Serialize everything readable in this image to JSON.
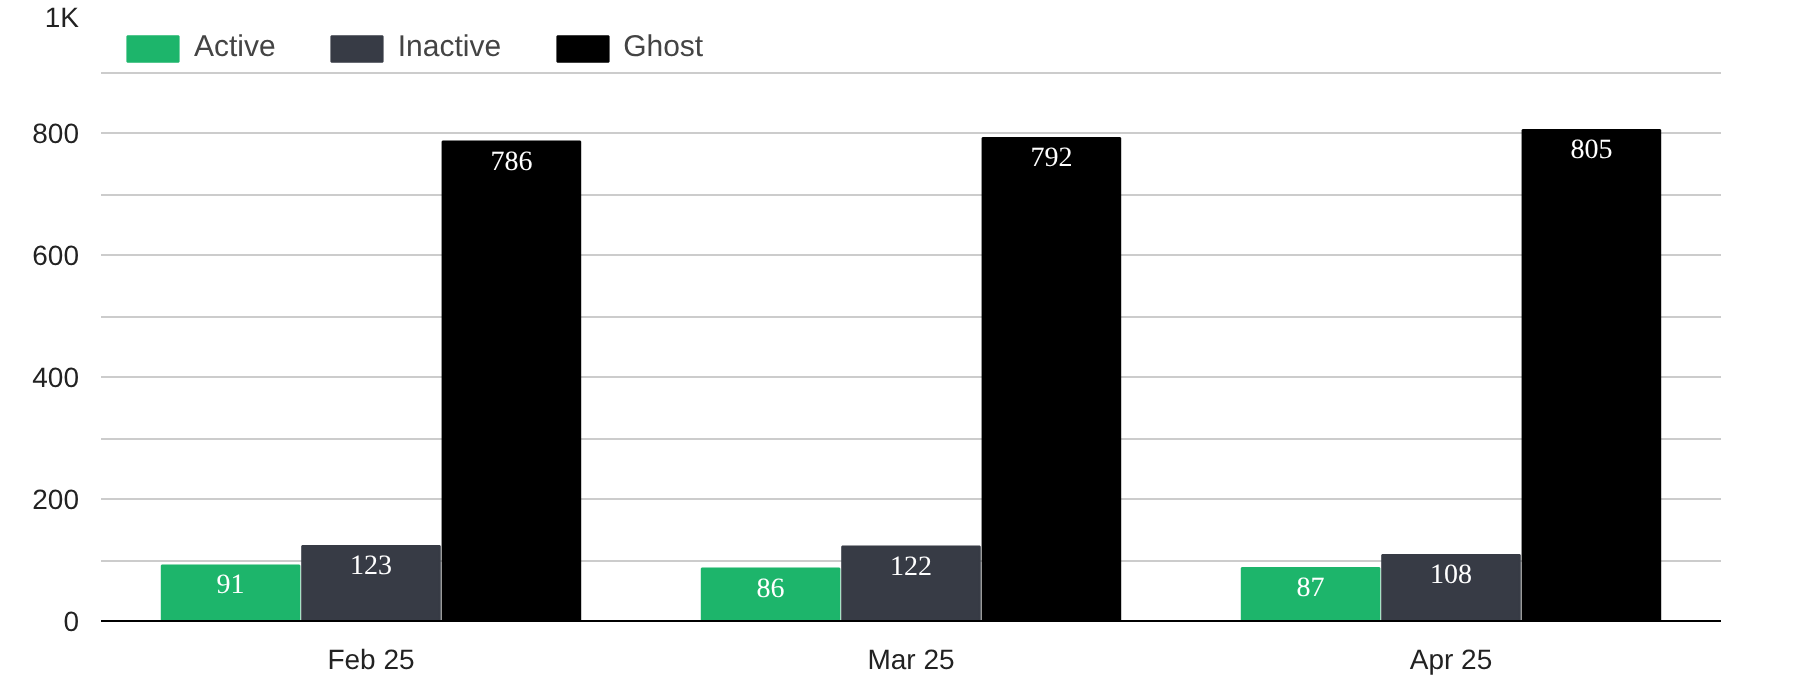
{
  "chart_data": {
    "type": "bar",
    "categories": [
      "Feb 25",
      "Mar 25",
      "Apr 25"
    ],
    "series": [
      {
        "name": "Active",
        "color": "#1db56b",
        "values": [
          91,
          86,
          87
        ]
      },
      {
        "name": "Inactive",
        "color": "#373b45",
        "values": [
          123,
          122,
          108
        ]
      },
      {
        "name": "Ghost",
        "color": "#000000",
        "values": [
          786,
          792,
          805
        ]
      }
    ],
    "ylim": [
      0,
      1000
    ],
    "yticks": [
      0,
      {
        "value": 100,
        "label": null
      },
      200,
      {
        "value": 300,
        "label": null
      },
      400,
      {
        "value": 500,
        "label": null
      },
      600,
      {
        "value": 700,
        "label": null
      },
      800,
      {
        "value": 900,
        "label": null
      },
      {
        "value": 1000,
        "label": "1K"
      }
    ],
    "grid": "y",
    "legend": "top left",
    "data_labels": true
  }
}
